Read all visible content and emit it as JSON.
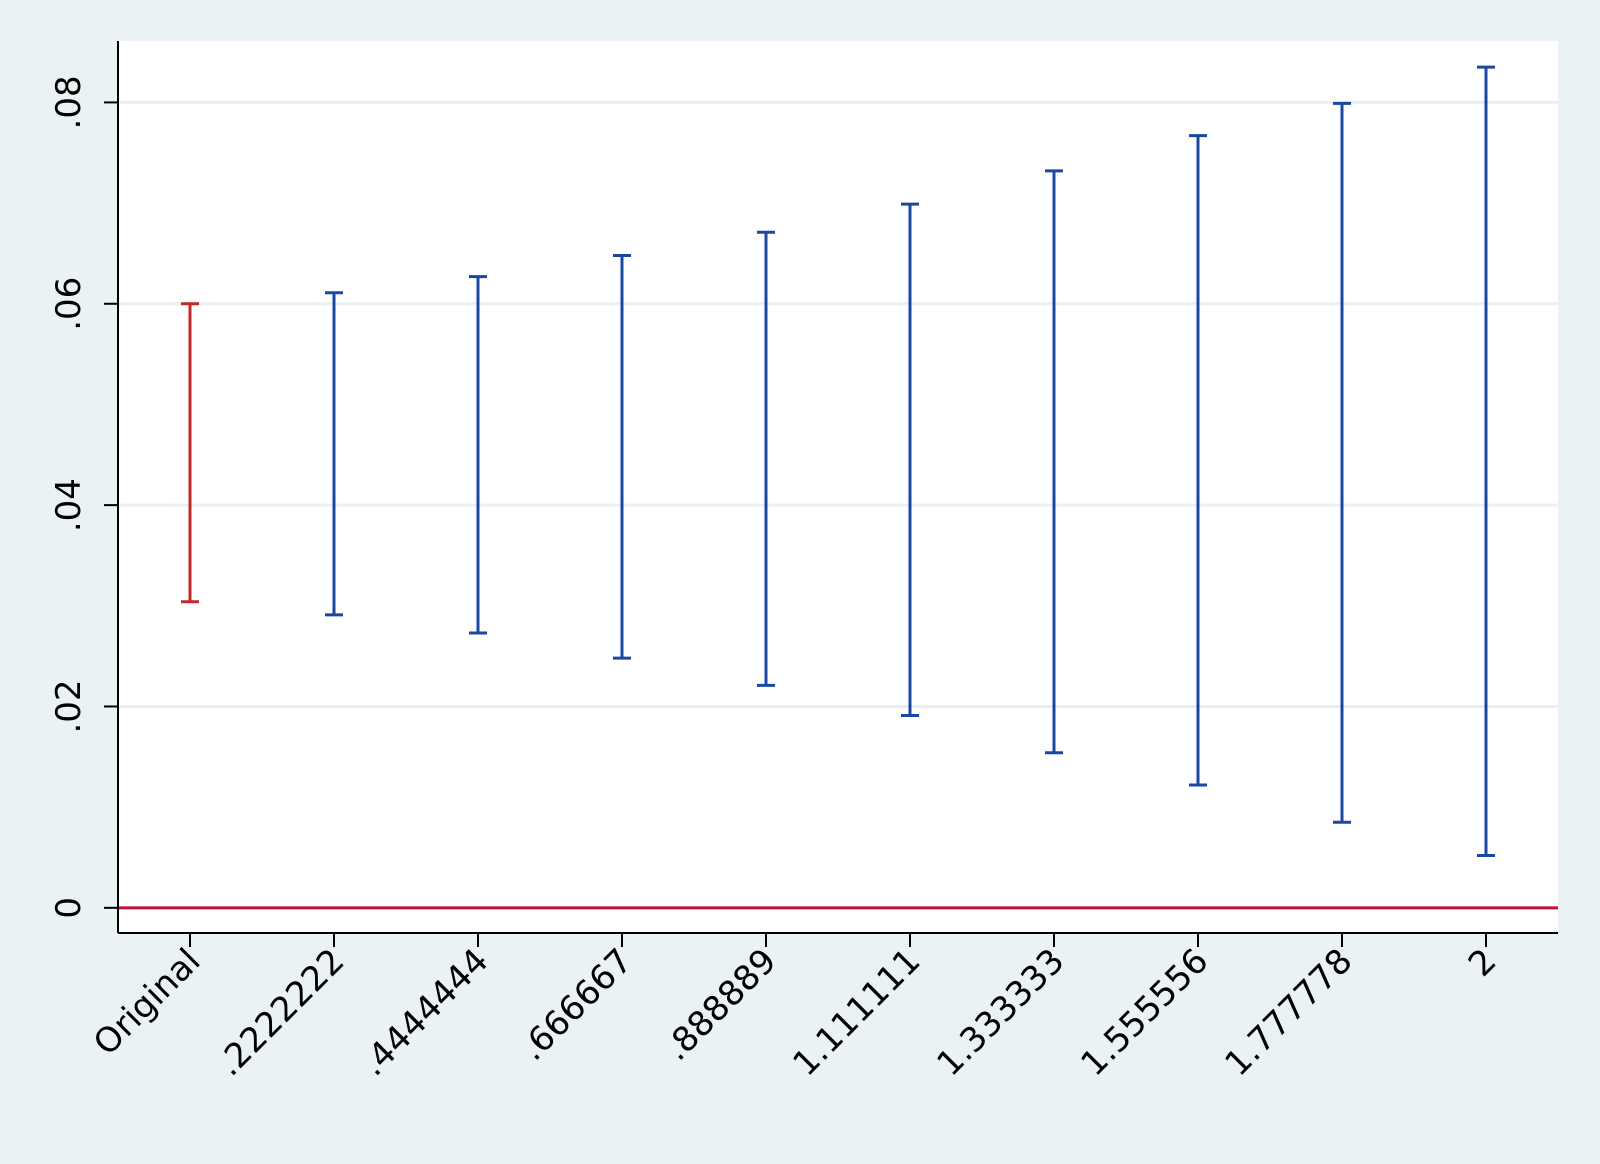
{
  "chart_data": {
    "type": "rcap",
    "categories": [
      "Original",
      ".2222222",
      ".4444444",
      ".666667",
      ".888889",
      "1.111111",
      "1.333333",
      "1.555556",
      "1.777778",
      "2"
    ],
    "low": [
      0.0304,
      0.0291,
      0.0273,
      0.0248,
      0.0221,
      0.0191,
      0.0154,
      0.0122,
      0.0085,
      0.0052
    ],
    "high": [
      0.06,
      0.0611,
      0.0627,
      0.0648,
      0.0671,
      0.0699,
      0.0732,
      0.0767,
      0.0799,
      0.0835
    ],
    "colors": [
      "#c0282d",
      "#1a48a0",
      "#1a48a0",
      "#1a48a0",
      "#1a48a0",
      "#1a48a0",
      "#1a48a0",
      "#1a48a0",
      "#1a48a0",
      "#1a48a0"
    ],
    "ylim": [
      -0.0025,
      0.0861
    ],
    "yticks": [
      0,
      {
        "value": 0.02,
        "label": ".02"
      },
      {
        "value": 0.04,
        "label": ".04"
      },
      {
        "value": 0.06,
        "label": ".06"
      },
      {
        "value": 0.08,
        "label": ".08"
      }
    ],
    "grid": true,
    "hline": {
      "value": 0,
      "color": "#c0143c"
    }
  }
}
